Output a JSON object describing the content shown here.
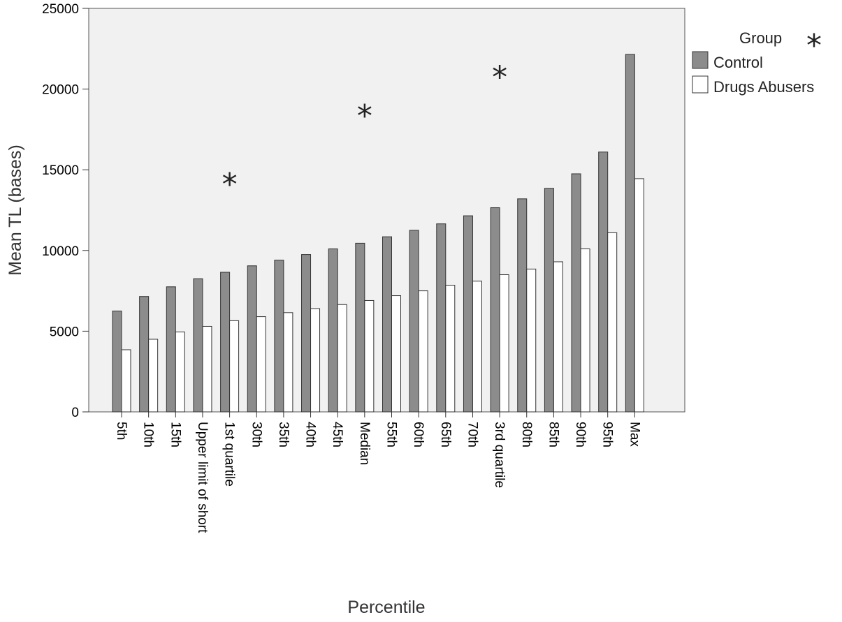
{
  "chart_data": {
    "type": "bar",
    "xlabel": "Percentile",
    "ylabel": "Mean TL (bases)",
    "ylim": [
      0,
      25000
    ],
    "yticks": [
      0,
      5000,
      10000,
      15000,
      20000,
      25000
    ],
    "categories": [
      "5th",
      "10th",
      "15th",
      "Upper limit of short",
      "1st quartile",
      "30th",
      "35th",
      "40th",
      "45th",
      "Median",
      "55th",
      "60th",
      "65th",
      "70th",
      "3rd quartile",
      "80th",
      "85th",
      "90th",
      "95th",
      "Max"
    ],
    "series": [
      {
        "name": "Control",
        "color": "#8c8c8c",
        "values": [
          6250,
          7150,
          7750,
          8250,
          8650,
          9050,
          9400,
          9750,
          10100,
          10450,
          10850,
          11250,
          11650,
          12150,
          12650,
          13200,
          13850,
          14750,
          16100,
          22150
        ]
      },
      {
        "name": "Drugs Abusers",
        "color": "#ffffff",
        "values": [
          3850,
          4500,
          4950,
          5300,
          5650,
          5900,
          6150,
          6400,
          6650,
          6900,
          7200,
          7500,
          7850,
          8100,
          8500,
          8850,
          9300,
          10100,
          11100,
          14450
        ]
      }
    ],
    "markers": [
      {
        "category": "1st quartile",
        "y": 14400,
        "symbol": "*"
      },
      {
        "category": "Median",
        "y": 18650,
        "symbol": "*"
      },
      {
        "category": "3rd quartile",
        "y": 21050,
        "symbol": "*"
      }
    ],
    "legend": {
      "title": "Group",
      "position": "right",
      "marker_symbol": "*"
    },
    "grid": false,
    "plot_background": "#f1f1f1"
  }
}
